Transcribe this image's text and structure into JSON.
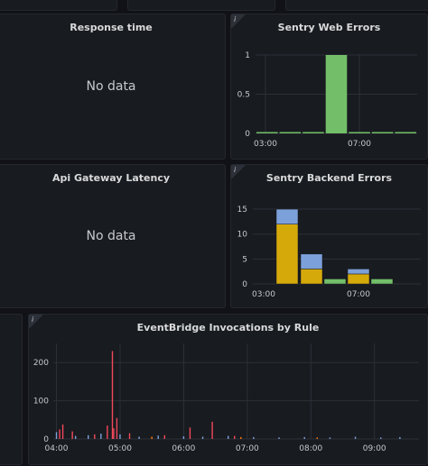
{
  "panels": {
    "response_time": {
      "title": "Response time",
      "no_data": "No data"
    },
    "api_gateway_latency": {
      "title": "Api Gateway Latency",
      "no_data": "No data"
    },
    "sentry_web_errors": {
      "title": "Sentry Web Errors",
      "info": "i"
    },
    "sentry_backend_errors": {
      "title": "Sentry Backend Errors",
      "info": "i"
    },
    "eventbridge_invocations": {
      "title": "EventBridge Invocations by Rule",
      "info": "i"
    }
  },
  "colors": {
    "green": "#6ab04c",
    "green_fill": "#73bf69",
    "yellow": "#d6a90b",
    "blue": "#7ca0da",
    "red": "#f2495c",
    "grid": "#2c3038",
    "tick_text": "#c7c9cc"
  },
  "chart_data": [
    {
      "id": "sentry_web_errors",
      "type": "bar",
      "title": "Sentry Web Errors",
      "x_ticks": [
        "03:00",
        "07:00"
      ],
      "y_ticks": [
        "0",
        "0.5",
        "1"
      ],
      "ylim": [
        0,
        1
      ],
      "series": [
        {
          "color": "#73bf69",
          "values": [
            0,
            0,
            0,
            1,
            0,
            0,
            0
          ]
        }
      ]
    },
    {
      "id": "sentry_backend_errors",
      "type": "bar",
      "stacked": true,
      "title": "Sentry Backend Errors",
      "x_ticks": [
        "03:00",
        "07:00"
      ],
      "y_ticks": [
        "0",
        "5",
        "10",
        "15"
      ],
      "ylim": [
        0,
        17
      ],
      "series": [
        {
          "color": "#d6a90b",
          "values": [
            12,
            3,
            0,
            2,
            0
          ]
        },
        {
          "color": "#73bf69",
          "values": [
            0,
            0,
            1,
            0,
            1
          ]
        },
        {
          "color": "#7ca0da",
          "values": [
            3,
            3,
            0,
            1,
            0
          ]
        }
      ]
    },
    {
      "id": "eventbridge_invocations",
      "type": "bar",
      "title": "EventBridge Invocations by Rule",
      "x_ticks": [
        "04:00",
        "05:00",
        "06:00",
        "07:00",
        "08:00",
        "09:00"
      ],
      "y_ticks": [
        "0",
        "100",
        "200"
      ],
      "ylim": [
        0,
        250
      ],
      "spikes": [
        {
          "t": 4.05,
          "v": 25,
          "s": "red"
        },
        {
          "t": 4.1,
          "v": 38,
          "s": "red"
        },
        {
          "t": 4.25,
          "v": 20,
          "s": "red"
        },
        {
          "t": 4.6,
          "v": 12,
          "s": "red"
        },
        {
          "t": 4.8,
          "v": 35,
          "s": "red"
        },
        {
          "t": 4.88,
          "v": 230,
          "s": "red"
        },
        {
          "t": 4.9,
          "v": 28,
          "s": "red"
        },
        {
          "t": 4.95,
          "v": 55,
          "s": "red"
        },
        {
          "t": 5.15,
          "v": 15,
          "s": "red"
        },
        {
          "t": 5.7,
          "v": 10,
          "s": "red"
        },
        {
          "t": 6.1,
          "v": 30,
          "s": "red"
        },
        {
          "t": 6.45,
          "v": 45,
          "s": "red"
        },
        {
          "t": 6.8,
          "v": 8,
          "s": "red"
        },
        {
          "t": 4.0,
          "v": 18,
          "s": "blue"
        },
        {
          "t": 4.3,
          "v": 8,
          "s": "blue"
        },
        {
          "t": 4.5,
          "v": 10,
          "s": "blue"
        },
        {
          "t": 4.7,
          "v": 14,
          "s": "blue"
        },
        {
          "t": 5.0,
          "v": 12,
          "s": "blue"
        },
        {
          "t": 5.3,
          "v": 6,
          "s": "blue"
        },
        {
          "t": 5.6,
          "v": 9,
          "s": "blue"
        },
        {
          "t": 6.0,
          "v": 7,
          "s": "blue"
        },
        {
          "t": 6.3,
          "v": 6,
          "s": "blue"
        },
        {
          "t": 6.7,
          "v": 8,
          "s": "blue"
        },
        {
          "t": 7.1,
          "v": 5,
          "s": "blue"
        },
        {
          "t": 7.5,
          "v": 4,
          "s": "blue"
        },
        {
          "t": 7.9,
          "v": 5,
          "s": "blue"
        },
        {
          "t": 8.3,
          "v": 4,
          "s": "blue"
        },
        {
          "t": 8.7,
          "v": 6,
          "s": "blue"
        },
        {
          "t": 9.1,
          "v": 4,
          "s": "blue"
        },
        {
          "t": 9.4,
          "v": 5,
          "s": "blue"
        },
        {
          "t": 5.5,
          "v": 6,
          "s": "orange"
        },
        {
          "t": 6.9,
          "v": 5,
          "s": "orange"
        },
        {
          "t": 8.1,
          "v": 4,
          "s": "orange"
        }
      ]
    }
  ]
}
